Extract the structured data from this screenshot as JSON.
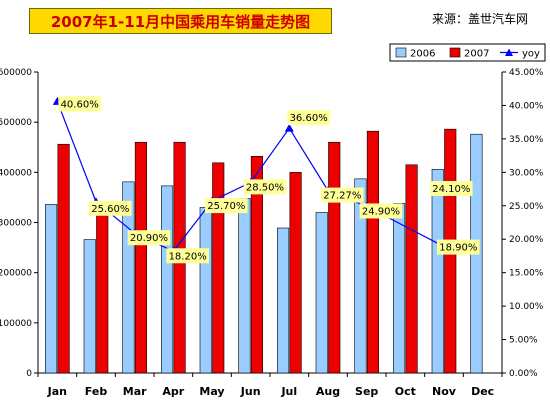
{
  "header": {
    "title": "2007年1-11月中国乘用车销量走势图",
    "source": "来源：盖世汽车网"
  },
  "chart_data": {
    "type": "bar",
    "categories": [
      "Jan",
      "Feb",
      "Mar",
      "Apr",
      "May",
      "Jun",
      "Jul",
      "Aug",
      "Sep",
      "Oct",
      "Nov",
      "Dec"
    ],
    "series": [
      {
        "name": "2006",
        "kind": "bar",
        "axis": "left",
        "color": "#99ccff",
        "values": [
          336000,
          266000,
          381000,
          373000,
          330000,
          348000,
          289000,
          320000,
          387000,
          338000,
          406000,
          476000
        ]
      },
      {
        "name": "2007",
        "kind": "bar",
        "axis": "left",
        "color": "#ee0000",
        "values": [
          456000,
          341000,
          460000,
          460000,
          419000,
          432000,
          400000,
          460000,
          482000,
          415000,
          486000,
          null
        ]
      },
      {
        "name": "yoy",
        "kind": "line",
        "axis": "right",
        "color": "#0000ff",
        "values": [
          40.6,
          25.6,
          20.9,
          18.2,
          25.7,
          28.5,
          36.6,
          27.27,
          24.9,
          null,
          18.9,
          null
        ],
        "labels": [
          "40.60%",
          "25.60%",
          "20.90%",
          "18.20%",
          "25.70%",
          "28.50%",
          "36.60%",
          "27.27%",
          "24.90%",
          "",
          "18.90%",
          ""
        ]
      }
    ],
    "extra_label": "24.10%",
    "ylim_left": [
      0,
      600000
    ],
    "ylim_right": [
      0,
      45
    ],
    "left_ticks": [
      "0",
      "100000",
      "200000",
      "300000",
      "400000",
      "500000",
      "600000"
    ],
    "right_ticks": [
      "0.00%",
      "5.00%",
      "10.00%",
      "15.00%",
      "20.00%",
      "25.00%",
      "30.00%",
      "35.00%",
      "40.00%",
      "45.00%"
    ],
    "grid": false,
    "legend_position": "top-right",
    "label_bg": "#ffff99"
  }
}
